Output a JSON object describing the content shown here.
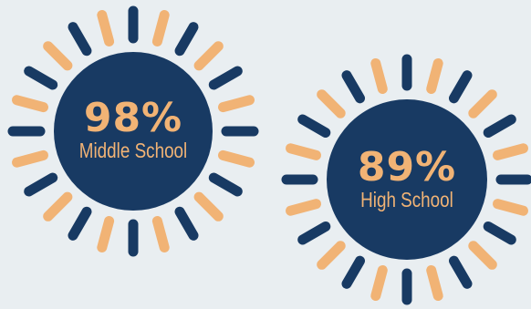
{
  "stats": [
    {
      "value": "98%",
      "label": "Middle School"
    },
    {
      "value": "89%",
      "label": "High School"
    }
  ],
  "colors": {
    "background": "#E9EEF1",
    "navy": "#183A63",
    "orange": "#F1B375"
  },
  "icons": {
    "decoration": "sunburst-rays"
  }
}
